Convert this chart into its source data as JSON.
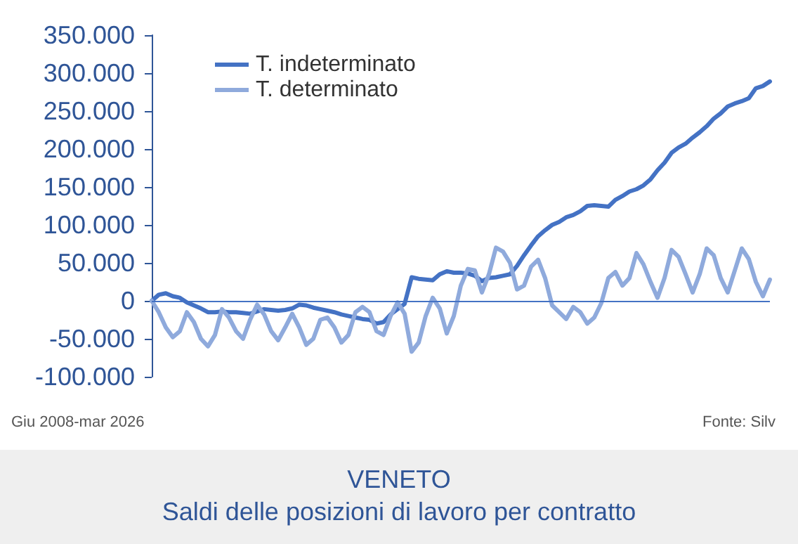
{
  "chart_data": {
    "type": "line",
    "title": "VENETO",
    "subtitle": "Saldi delle posizioni di lavoro per contratto",
    "annotations": [
      "Giu 2008-mar 2026",
      "Fonte: Silv"
    ],
    "categories": [
      null,
      null,
      null,
      null,
      null,
      null,
      null,
      null,
      null,
      null,
      null,
      null,
      null,
      null,
      null,
      null,
      null,
      null,
      null,
      null,
      null,
      null,
      null,
      null,
      null,
      null,
      null,
      null,
      null,
      null,
      null,
      null,
      null,
      null,
      null,
      null,
      null,
      null,
      null,
      null,
      null,
      null,
      null,
      null,
      null,
      null,
      null,
      null,
      null,
      null,
      null,
      null,
      null,
      null,
      null,
      null,
      null,
      null,
      null,
      null,
      null,
      null,
      null,
      null,
      null,
      null,
      null,
      null,
      null,
      null,
      null,
      null,
      null,
      null,
      null,
      null,
      null,
      null,
      null,
      null,
      null,
      null,
      null,
      null,
      null,
      null,
      null,
      null,
      null
    ],
    "series": [
      {
        "name": "T. indeterminato",
        "color": "#4472c4",
        "values": [
          0,
          8000,
          10000,
          6000,
          4000,
          -2000,
          -6000,
          -10000,
          -15000,
          -15000,
          -14000,
          -15000,
          -15000,
          -16000,
          -17000,
          -14000,
          -11000,
          -12000,
          -13000,
          -12000,
          -10000,
          -5000,
          -6000,
          -9000,
          -11000,
          -13000,
          -15000,
          -18000,
          -20000,
          -22000,
          -24000,
          -25000,
          -30000,
          -28000,
          -18000,
          -11000,
          -4000,
          31000,
          29000,
          28000,
          27000,
          35000,
          39000,
          37000,
          37000,
          36000,
          33000,
          26000,
          30000,
          31000,
          33000,
          35000,
          46000,
          60000,
          73000,
          85000,
          93000,
          100000,
          104000,
          110000,
          113000,
          118000,
          125000,
          126000,
          125000,
          124000,
          133000,
          138000,
          144000,
          147000,
          152000,
          160000,
          172000,
          182000,
          195000,
          202000,
          207000,
          215000,
          222000,
          230000,
          240000,
          247000,
          256000,
          260000,
          263000,
          267000,
          280000,
          283000,
          289000
        ]
      },
      {
        "name": "T. determinato",
        "color": "#8faadc",
        "values": [
          0,
          -15000,
          -35000,
          -48000,
          -40000,
          -15000,
          -28000,
          -50000,
          -60000,
          -45000,
          -11000,
          -22000,
          -40000,
          -50000,
          -25000,
          -5000,
          -18000,
          -40000,
          -52000,
          -35000,
          -17000,
          -35000,
          -58000,
          -50000,
          -25000,
          -22000,
          -35000,
          -55000,
          -45000,
          -15000,
          -8000,
          -15000,
          -40000,
          -45000,
          -20000,
          -2000,
          -17000,
          -67000,
          -55000,
          -20000,
          4000,
          -10000,
          -43000,
          -20000,
          20000,
          42000,
          40000,
          11000,
          35000,
          70000,
          65000,
          50000,
          15000,
          20000,
          45000,
          54000,
          30000,
          -6000,
          -15000,
          -24000,
          -8000,
          -15000,
          -30000,
          -22000,
          -3000,
          30000,
          38000,
          20000,
          30000,
          63000,
          48000,
          25000,
          4000,
          30000,
          67000,
          58000,
          35000,
          11000,
          35000,
          69000,
          60000,
          30000,
          11000,
          40000,
          69000,
          55000,
          25000,
          6000,
          28000
        ]
      }
    ],
    "ylim": [
      -100000,
      350000
    ],
    "yticks": [
      {
        "value": -100000,
        "label": "-100.000"
      },
      {
        "value": -50000,
        "label": "-50.000"
      },
      {
        "value": 0,
        "label": "0"
      },
      {
        "value": 50000,
        "label": "50.000"
      },
      {
        "value": 100000,
        "label": "100.000"
      },
      {
        "value": 150000,
        "label": "150.000"
      },
      {
        "value": 200000,
        "label": "200.000"
      },
      {
        "value": 250000,
        "label": "250.000"
      },
      {
        "value": 300000,
        "label": "300.000"
      },
      {
        "value": 350000,
        "label": "350.000"
      }
    ],
    "grid": false,
    "ref_lines": [
      {
        "axis": "y",
        "value": 0,
        "color": "#4472c4"
      }
    ],
    "legend": "top left",
    "line_style": "solid",
    "tick_labels": "y"
  }
}
